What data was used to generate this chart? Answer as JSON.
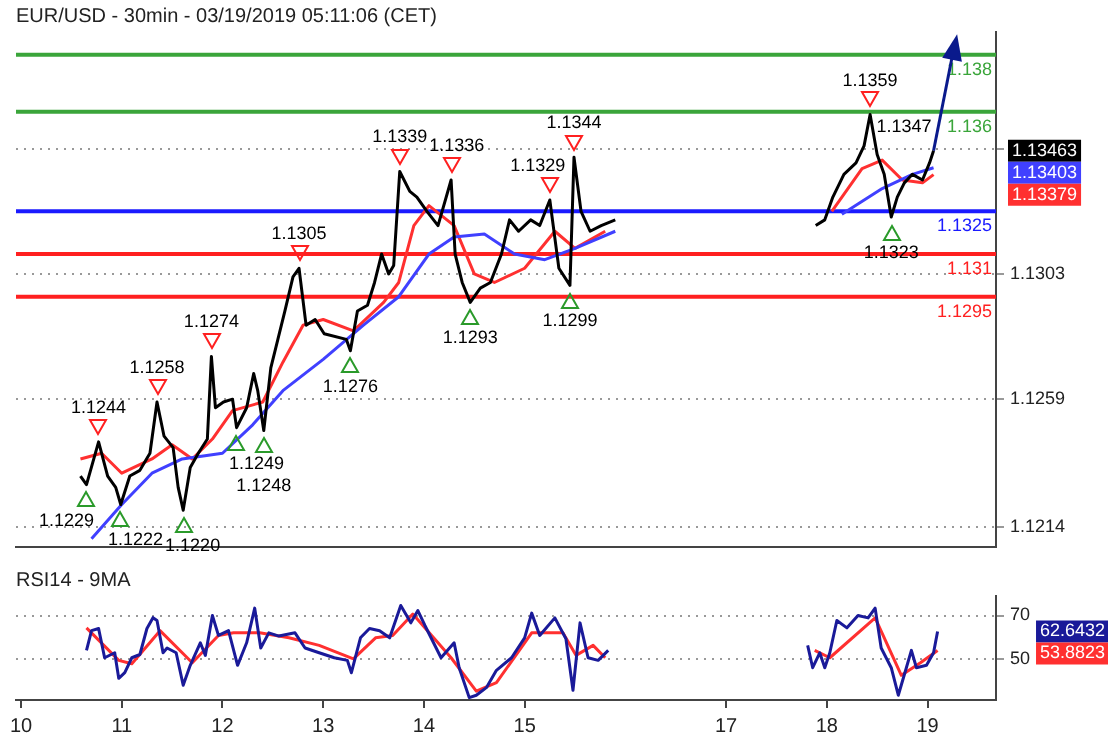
{
  "chart_data": [
    {
      "type": "line",
      "title": "EUR/USD - 30min - 03/19/2019 05:11:06 (CET)",
      "series": [
        {
          "color": "#000000",
          "x": [
            10.59,
            10.65,
            10.77,
            10.86,
            10.94,
            10.99,
            11.08,
            11.18,
            11.28,
            11.35,
            11.42,
            11.51,
            11.56,
            11.61,
            11.68,
            11.76,
            11.85,
            11.89,
            11.93,
            12.01,
            12.1,
            12.14,
            12.24,
            12.31,
            12.35,
            12.41,
            12.48,
            12.55,
            12.62,
            12.7,
            12.76,
            12.83,
            12.92,
            13.01,
            13.23,
            13.27,
            13.34,
            13.44,
            13.51,
            13.58,
            13.65,
            13.7,
            13.76,
            13.86,
            13.93,
            14.03,
            14.14,
            14.27,
            14.31,
            14.38,
            14.46,
            14.56,
            14.66,
            14.77,
            14.85,
            14.94,
            15.06,
            15.15,
            15.25,
            15.34,
            15.45,
            15.49,
            15.56,
            15.65,
            15.76,
            15.9,
            16.5,
            17.89,
            17.98,
            18.06,
            18.17,
            18.29,
            18.37,
            18.43,
            18.5,
            18.57,
            18.64,
            18.7,
            18.77,
            18.85,
            18.95,
            19.02,
            19.06
          ],
          "values": [
            1.1232,
            1.1229,
            1.1244,
            1.1232,
            1.1228,
            1.1222,
            1.1232,
            1.1234,
            1.124,
            1.1258,
            1.1246,
            1.1242,
            1.1228,
            1.122,
            1.1235,
            1.124,
            1.1245,
            1.1274,
            1.1256,
            1.1258,
            1.1259,
            1.1249,
            1.1256,
            1.1268,
            1.1262,
            1.1248,
            1.127,
            1.128,
            1.129,
            1.1302,
            1.1305,
            1.1285,
            1.1287,
            1.1282,
            1.128,
            1.1276,
            1.129,
            1.1292,
            1.13,
            1.131,
            1.1303,
            1.1306,
            1.1339,
            1.1332,
            1.133,
            1.1325,
            1.132,
            1.1336,
            1.131,
            1.13,
            1.1293,
            1.1298,
            1.13,
            1.131,
            1.1322,
            1.1318,
            1.1322,
            1.132,
            1.1329,
            1.1305,
            1.1299,
            1.1344,
            1.1325,
            1.1318,
            1.132,
            1.1322,
            null,
            1.132,
            1.1322,
            1.133,
            1.1338,
            1.1342,
            1.1348,
            1.1359,
            1.1345,
            1.1338,
            1.1323,
            1.133,
            1.1335,
            1.1338,
            1.1336,
            1.1342,
            1.13463
          ]
        },
        {
          "color": "#4040ff",
          "x": [
            10.7,
            11.0,
            11.3,
            11.6,
            12.0,
            12.3,
            12.6,
            13.0,
            13.4,
            13.75,
            14.05,
            14.3,
            14.6,
            14.9,
            15.2,
            15.5,
            15.9,
            16.5,
            18.15,
            18.55,
            18.85,
            19.06
          ],
          "values": [
            1.121,
            1.1222,
            1.1233,
            1.1238,
            1.124,
            1.125,
            1.1262,
            1.1273,
            1.1285,
            1.1295,
            1.131,
            1.1316,
            1.1317,
            1.131,
            1.1308,
            1.1312,
            1.1318,
            null,
            1.1324,
            1.1333,
            1.1338,
            1.13403
          ]
        },
        {
          "color": "#ff3030",
          "x": [
            10.59,
            10.8,
            11.0,
            11.3,
            11.5,
            11.7,
            11.9,
            12.1,
            12.4,
            12.6,
            12.8,
            13.0,
            13.3,
            13.6,
            13.75,
            13.9,
            14.05,
            14.3,
            14.5,
            14.7,
            15.0,
            15.3,
            15.5,
            15.8,
            16.5,
            18.05,
            18.35,
            18.55,
            18.75,
            18.95,
            19.06
          ],
          "values": [
            1.1238,
            1.124,
            1.1233,
            1.1238,
            1.1243,
            1.1238,
            1.1245,
            1.1255,
            1.1258,
            1.1272,
            1.1285,
            1.1287,
            1.1283,
            1.1293,
            1.13,
            1.132,
            1.1327,
            1.132,
            1.1303,
            1.13,
            1.1305,
            1.1318,
            1.1312,
            1.1318,
            null,
            1.1325,
            1.134,
            1.1343,
            1.1336,
            1.1335,
            1.13379
          ]
        },
        {
          "color": "#0a1a8c",
          "x": [
            19.06,
            19.26
          ],
          "values": [
            1.13463,
            1.1382
          ]
        }
      ],
      "xlim": [
        9.95,
        19.68
      ],
      "ylim": [
        1.1207,
        1.1388
      ],
      "yticks": [
        1.1214,
        1.1259,
        1.1303,
        {
          "value": 1.1347,
          "label": null
        }
      ],
      "tick_labels": "y",
      "grid": "y",
      "ref_lines": [
        {
          "axis": "y",
          "value": 1.138,
          "label": "1.138",
          "color": "#3aa53a"
        },
        {
          "axis": "y",
          "value": 1.136,
          "label": "1.136",
          "color": "#3aa53a"
        },
        {
          "axis": "y",
          "value": 1.1325,
          "label": "1.1325",
          "color": "#1a1aff"
        },
        {
          "axis": "y",
          "value": 1.131,
          "label": "1.131",
          "color": "#ff2020"
        },
        {
          "axis": "y",
          "value": 1.1295,
          "label": "1.1295",
          "color": "#ff2020"
        }
      ],
      "annotations": [
        {
          "text": "1.1244",
          "x": 10.77,
          "y": 1.1244
        },
        {
          "text": "1.1258",
          "x": 11.35,
          "y": 1.1258
        },
        {
          "text": "1.1274",
          "x": 11.89,
          "y": 1.1274
        },
        {
          "text": "1.1305",
          "x": 12.76,
          "y": 1.1305
        },
        {
          "text": "1.1339",
          "x": 13.76,
          "y": 1.1339
        },
        {
          "text": "1.1336",
          "x": 14.27,
          "y": 1.1336
        },
        {
          "text": "1.1329",
          "x": 15.25,
          "y": 1.1329
        },
        {
          "text": "1.1344",
          "x": 15.49,
          "y": 1.1344
        },
        {
          "text": "1.1359",
          "x": 18.43,
          "y": 1.1359
        },
        {
          "text": "1.1229",
          "x": 10.65,
          "y": 1.1229
        },
        {
          "text": "1.1222",
          "x": 10.99,
          "y": 1.1222
        },
        {
          "text": "1.1220",
          "x": 11.61,
          "y": 1.122
        },
        {
          "text": "1.1249",
          "x": 12.14,
          "y": 1.1249
        },
        {
          "text": "1.1248",
          "x": 12.41,
          "y": 1.1248
        },
        {
          "text": "1.1276",
          "x": 13.27,
          "y": 1.1276
        },
        {
          "text": "1.1293",
          "x": 14.46,
          "y": 1.1293
        },
        {
          "text": "1.1299",
          "x": 15.45,
          "y": 1.1299
        },
        {
          "text": "1.1323",
          "x": 18.64,
          "y": 1.1323
        },
        {
          "text": "1.1347",
          "x": 19.06,
          "y": 1.13463
        },
        "1.13463",
        "1.13403",
        "1.13379"
      ]
    },
    {
      "type": "line",
      "title": "RSI14 - 9MA",
      "series": [
        {
          "color": "#1a1a99",
          "x": [
            10.65,
            10.7,
            10.77,
            10.83,
            10.93,
            10.97,
            11.03,
            11.1,
            11.18,
            11.25,
            11.31,
            11.35,
            11.41,
            11.45,
            11.54,
            11.61,
            11.68,
            11.78,
            11.83,
            11.9,
            11.96,
            12.06,
            12.15,
            12.24,
            12.32,
            12.38,
            12.46,
            12.56,
            12.72,
            12.82,
            12.96,
            13.11,
            13.24,
            13.28,
            13.37,
            13.46,
            13.56,
            13.66,
            13.77,
            13.87,
            13.94,
            14.01,
            14.17,
            14.3,
            14.35,
            14.45,
            14.52,
            14.62,
            14.72,
            14.87,
            15.0,
            15.07,
            15.15,
            15.3,
            15.41,
            15.48,
            15.55,
            15.63,
            15.73,
            15.83,
            16.5,
            17.81,
            17.86,
            17.93,
            17.98,
            18.03,
            18.1,
            18.2,
            18.31,
            18.41,
            18.48,
            18.54,
            18.64,
            18.71,
            18.79,
            18.84,
            18.89,
            18.99,
            19.06,
            19.1
          ],
          "values": [
            53.9,
            63,
            64,
            50.5,
            52.8,
            41,
            43.6,
            50.5,
            52,
            64,
            69,
            67.7,
            52.8,
            55,
            52.8,
            37.8,
            47,
            57.4,
            51.6,
            70,
            60.8,
            63,
            47,
            57.4,
            73.4,
            55,
            62,
            60.5,
            62,
            55,
            52.8,
            50.5,
            49.3,
            43.6,
            59.7,
            64,
            63,
            59.7,
            74.6,
            66.6,
            72.3,
            65.4,
            50.5,
            57.4,
            45.9,
            32.1,
            33.2,
            36.7,
            44.7,
            50.5,
            59.7,
            71.1,
            60.8,
            68.9,
            59.3,
            35.5,
            66.6,
            50.5,
            49.3,
            53.9,
            null,
            56.2,
            45.9,
            52.8,
            45.9,
            52.8,
            67.7,
            64.3,
            70,
            68.9,
            73.4,
            55,
            45.9,
            33.2,
            45.9,
            53.9,
            45.9,
            47,
            52.8,
            62.6432
          ]
        },
        {
          "color": "#ff3030",
          "x": [
            10.65,
            10.97,
            11.1,
            11.38,
            11.7,
            11.96,
            12.11,
            12.37,
            12.66,
            12.96,
            13.3,
            13.52,
            13.69,
            13.89,
            14.27,
            14.52,
            14.72,
            15.07,
            15.38,
            15.51,
            15.68,
            15.8,
            16.5,
            17.88,
            18.03,
            18.48,
            18.74,
            18.93,
            19.1
          ],
          "values": [
            64.3,
            49.3,
            47.7,
            63,
            48.2,
            60.8,
            62,
            62,
            59.7,
            56.2,
            50,
            59.7,
            60.8,
            70.7,
            50.5,
            35.1,
            39,
            62,
            62,
            51.6,
            56.2,
            50.5,
            null,
            53.9,
            50.5,
            68.9,
            42.4,
            48.2,
            53.8823
          ]
        }
      ],
      "xlim": [
        9.95,
        19.68
      ],
      "xticks": [
        10,
        11,
        12,
        13,
        14,
        15,
        17,
        18,
        19
      ],
      "ylim": [
        31,
        79
      ],
      "yticks": [
        50,
        70
      ],
      "grid": "y",
      "annotations": [
        "62.6432",
        "53.8823"
      ]
    }
  ]
}
